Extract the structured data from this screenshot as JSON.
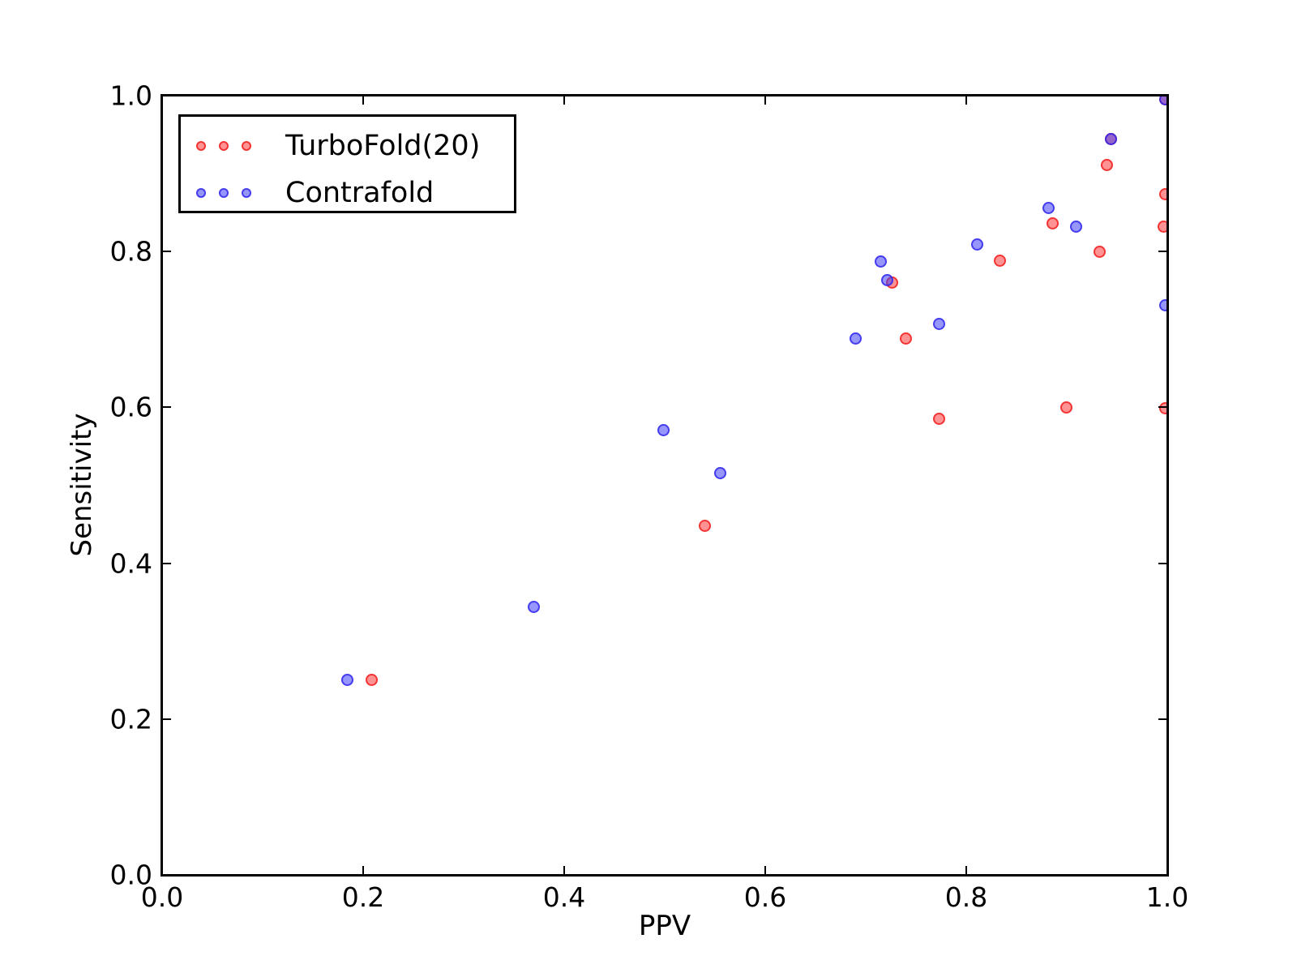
{
  "figure": {
    "background": "#ffffff"
  },
  "chart_data": {
    "type": "scatter",
    "title": "",
    "xlabel": "PPV",
    "ylabel": "Sensitivity",
    "xlim": [
      0.0,
      1.0
    ],
    "ylim": [
      0.0,
      1.0
    ],
    "xticks": [
      0.0,
      0.2,
      0.4,
      0.6,
      0.8,
      1.0
    ],
    "yticks": [
      0.0,
      0.2,
      0.4,
      0.6,
      0.8,
      1.0
    ],
    "xtick_labels": [
      "0.0",
      "0.2",
      "0.4",
      "0.6",
      "0.8",
      "1.0"
    ],
    "ytick_labels": [
      "0.0",
      "0.2",
      "0.4",
      "0.6",
      "0.8",
      "1.0"
    ],
    "grid": false,
    "legend_position": "upper left",
    "series": [
      {
        "id": "turbofold",
        "name": "TurboFold(20)",
        "marker": "circle",
        "fill": "rgba(255,38,38,0.5)",
        "edge": "rgba(240,30,30,0.8)",
        "points": [
          [
            0.209,
            0.25
          ],
          [
            0.54,
            0.447
          ],
          [
            0.727,
            0.76
          ],
          [
            0.74,
            0.688
          ],
          [
            0.773,
            0.585
          ],
          [
            0.834,
            0.788
          ],
          [
            0.886,
            0.836
          ],
          [
            0.9,
            0.599
          ],
          [
            0.933,
            0.799
          ],
          [
            0.94,
            0.91
          ],
          [
            0.944,
            0.944
          ],
          [
            0.997,
            0.831
          ],
          [
            0.998,
            0.873
          ],
          [
            0.998,
            0.598
          ],
          [
            0.998,
            0.995
          ]
        ]
      },
      {
        "id": "contrafold",
        "name": "Contrafold",
        "marker": "circle",
        "fill": "rgba(64,64,250,0.55)",
        "edge": "rgba(48,38,235,0.8)",
        "points": [
          [
            0.185,
            0.25
          ],
          [
            0.37,
            0.343
          ],
          [
            0.499,
            0.57
          ],
          [
            0.556,
            0.515
          ],
          [
            0.69,
            0.688
          ],
          [
            0.715,
            0.787
          ],
          [
            0.722,
            0.763
          ],
          [
            0.773,
            0.707
          ],
          [
            0.811,
            0.809
          ],
          [
            0.882,
            0.855
          ],
          [
            0.91,
            0.831
          ],
          [
            0.944,
            0.944
          ],
          [
            0.998,
            0.731
          ],
          [
            0.998,
            0.995
          ]
        ]
      }
    ]
  }
}
